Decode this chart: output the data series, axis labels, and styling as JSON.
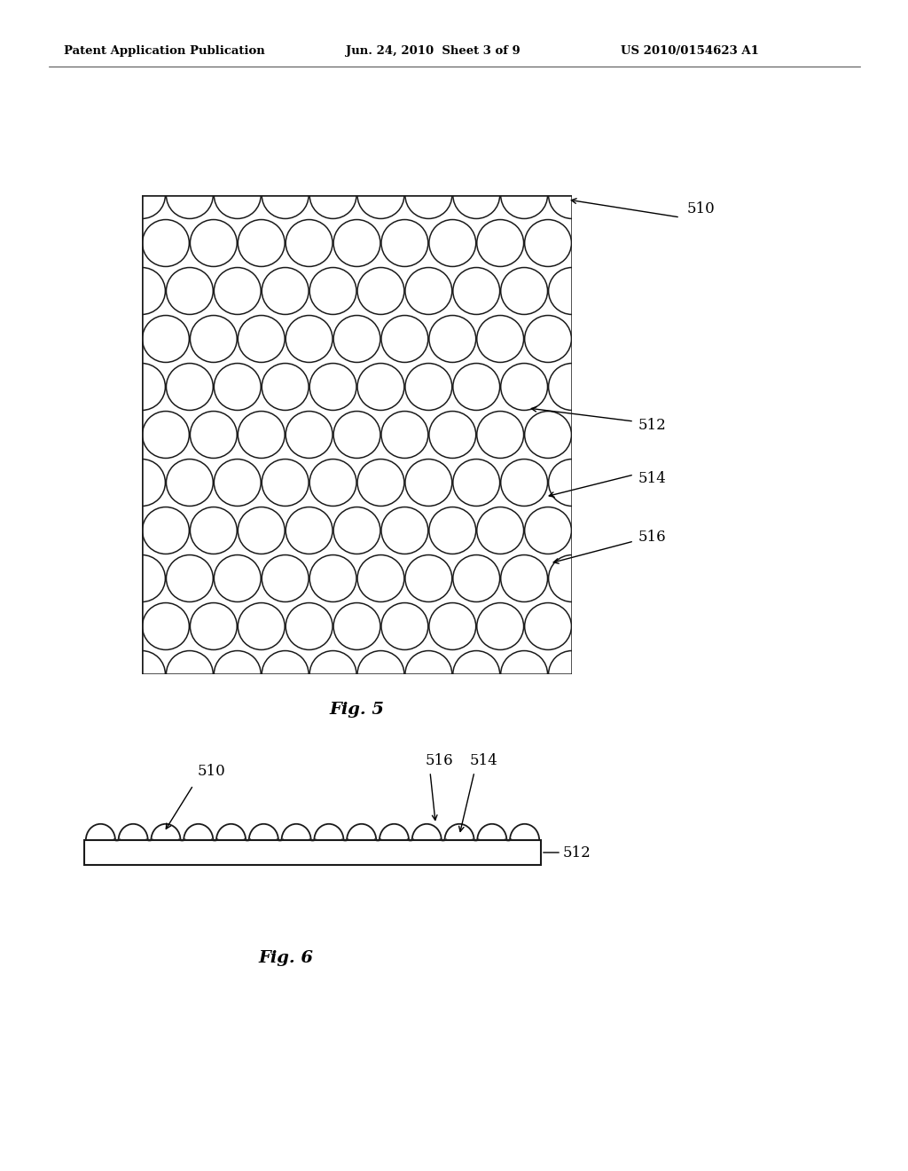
{
  "background_color": "#ffffff",
  "header_left": "Patent Application Publication",
  "header_center": "Jun. 24, 2010  Sheet 3 of 9",
  "header_right": "US 2010/0154623 A1",
  "fig5_label": "Fig. 5",
  "fig6_label": "Fig. 6",
  "label_510": "510",
  "label_512": "512",
  "label_514": "514",
  "label_516": "516",
  "fig5_panel_img": [
    160,
    220,
    645,
    760
  ],
  "fig5_rows": 10,
  "fig5_cols": 9,
  "fig6_panel_img": [
    95,
    915,
    610,
    975
  ],
  "fig6_n_domes": 14
}
